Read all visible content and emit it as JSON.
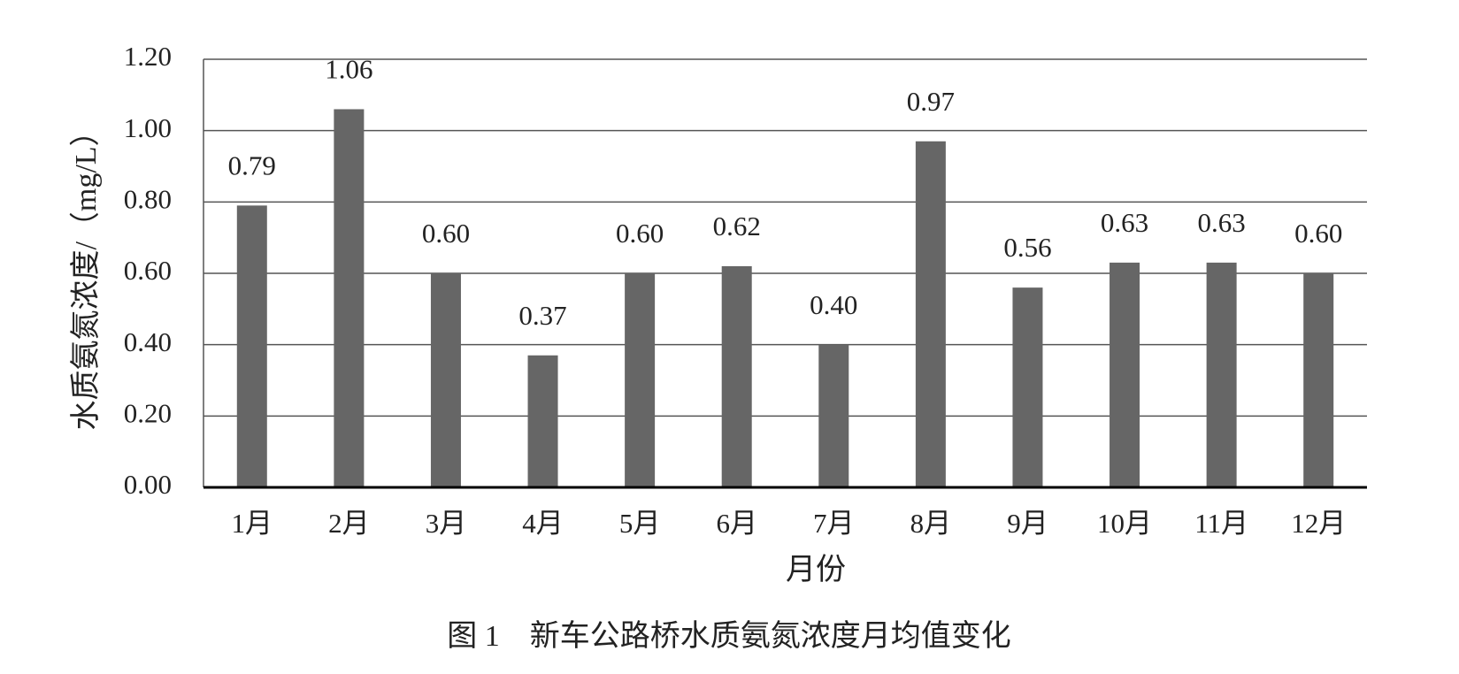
{
  "chart_data": {
    "type": "bar",
    "title": "图 1　新车公路桥水质氨氮浓度月均值变化",
    "x_label": "月份",
    "y_label": "水质氨氮浓度/（mg/L）",
    "categories": [
      "1月",
      "2月",
      "3月",
      "4月",
      "5月",
      "6月",
      "7月",
      "8月",
      "9月",
      "10月",
      "11月",
      "12月"
    ],
    "values": [
      0.79,
      1.06,
      0.6,
      0.37,
      0.6,
      0.62,
      0.4,
      0.97,
      0.56,
      0.63,
      0.63,
      0.6
    ],
    "value_labels": [
      "0.79",
      "1.06",
      "0.60",
      "0.37",
      "0.60",
      "0.62",
      "0.40",
      "0.97",
      "0.56",
      "0.63",
      "0.63",
      "0.60"
    ],
    "color": "#666666",
    "ylim": [
      0,
      1.2
    ],
    "yticks": [
      {
        "value": 0,
        "label": "0.00"
      },
      {
        "value": 0.2,
        "label": "0.20"
      },
      {
        "value": 0.4,
        "label": "0.40"
      },
      {
        "value": 0.6,
        "label": "0.60"
      },
      {
        "value": 0.8,
        "label": "0.80"
      },
      {
        "value": 1.0,
        "label": "1.00"
      },
      {
        "value": 1.2,
        "label": "1.20"
      }
    ],
    "grid": true
  }
}
